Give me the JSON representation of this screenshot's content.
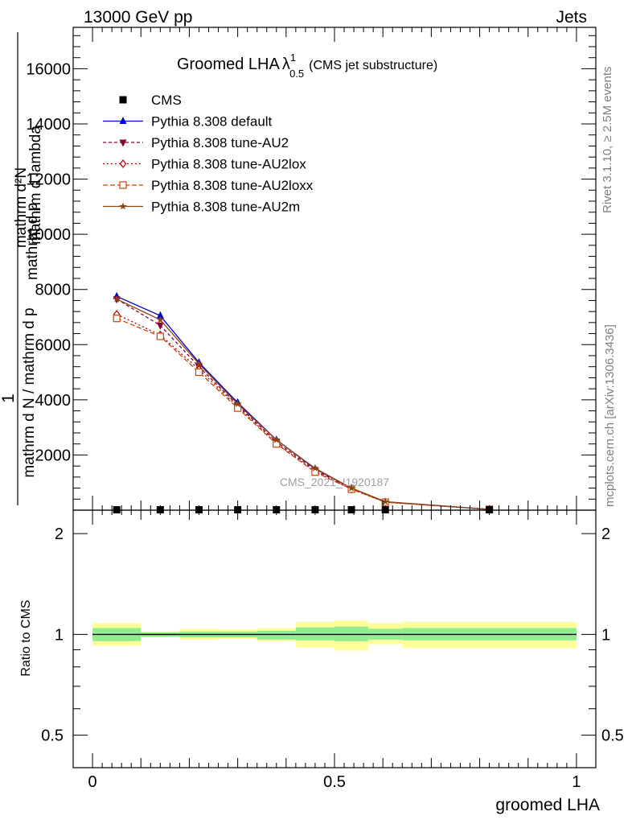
{
  "header": {
    "left": "13000 GeV pp",
    "right": "Jets",
    "side_top": "Rivet 3.1.10, ≥ 2.5M events",
    "side_bottom": "mcplots.cern.ch [arXiv:1306.3436]"
  },
  "chart_data": [
    {
      "type": "line",
      "title": "Groomed LHA",
      "title_symbol": "λ",
      "title_sup": "1",
      "title_sub": "0.5",
      "subtitle": "(CMS jet substructure)",
      "ylabel_lines": [
        "mathrm d²N",
        "mathrm d p",
        "mathrm d lambda"
      ],
      "ylabel_num": "1",
      "ylabel_den": "mathrm d N / mathrm d p",
      "watermark": "CMS_2021_I1920187",
      "xlim": [
        -0.04,
        1.04
      ],
      "ylim": [
        0,
        17500
      ],
      "y_ticks": [
        2000,
        4000,
        6000,
        8000,
        10000,
        12000,
        14000,
        16000
      ],
      "y_tick_labels": [
        "2000",
        "4000",
        "6000",
        "8000",
        "10000",
        "12000",
        "14000",
        "16000"
      ],
      "legend_position": "top-left",
      "cms": {
        "name": "CMS",
        "x": [
          0.05,
          0.14,
          0.22,
          0.3,
          0.38,
          0.46,
          0.535,
          0.605,
          0.82
        ],
        "values": [
          0,
          0,
          0,
          0,
          0,
          0,
          0,
          0,
          0
        ]
      },
      "series": [
        {
          "name": "Pythia 8.308 default",
          "color": "#0000cc",
          "marker": "triangle-up",
          "dash": "",
          "x": [
            0.05,
            0.14,
            0.22,
            0.3,
            0.38,
            0.46,
            0.535,
            0.605,
            0.82
          ],
          "values": [
            7750,
            7050,
            5350,
            3900,
            2550,
            1500,
            800,
            300,
            30
          ]
        },
        {
          "name": "Pythia 8.308 tune-AU2",
          "color": "#8b0033",
          "marker": "triangle-down",
          "dash": "4,3",
          "x": [
            0.05,
            0.14,
            0.22,
            0.3,
            0.38,
            0.46,
            0.535,
            0.605,
            0.82
          ],
          "values": [
            7650,
            6700,
            5200,
            3800,
            2480,
            1450,
            780,
            300,
            30
          ]
        },
        {
          "name": "Pythia 8.308 tune-AU2lox",
          "color": "#b00000",
          "marker": "diamond-open",
          "dash": "2,3",
          "x": [
            0.05,
            0.14,
            0.22,
            0.3,
            0.38,
            0.46,
            0.535,
            0.605,
            0.82
          ],
          "values": [
            7100,
            6350,
            5100,
            3750,
            2420,
            1400,
            760,
            290,
            30
          ]
        },
        {
          "name": "Pythia 8.308 tune-AU2loxx",
          "color": "#cc4400",
          "marker": "square-open",
          "dash": "6,3",
          "x": [
            0.05,
            0.14,
            0.22,
            0.3,
            0.38,
            0.46,
            0.535,
            0.605,
            0.82
          ],
          "values": [
            6950,
            6300,
            5000,
            3700,
            2400,
            1380,
            760,
            290,
            30
          ]
        },
        {
          "name": "Pythia 8.308 tune-AU2m",
          "color": "#8b4513",
          "marker": "star",
          "dash": "",
          "x": [
            0.05,
            0.14,
            0.22,
            0.3,
            0.38,
            0.46,
            0.535,
            0.605,
            0.82
          ],
          "values": [
            7650,
            6900,
            5300,
            3850,
            2550,
            1520,
            800,
            310,
            30
          ]
        }
      ]
    },
    {
      "type": "line",
      "title": "",
      "xlabel": "groomed LHA",
      "ylabel": "Ratio to CMS",
      "xlim": [
        -0.04,
        1.04
      ],
      "ylim": [
        0.4,
        2.35
      ],
      "y_scale": "log",
      "y_major_ticks": [
        0.5,
        1,
        2
      ],
      "y_major_labels": [
        "0.5",
        "1",
        "2"
      ],
      "x_major_ticks": [
        0,
        0.5,
        1
      ],
      "x_major_labels": [
        "0",
        "0.5",
        "1"
      ],
      "ratio_line": 1,
      "bands": [
        {
          "x0": 0.0,
          "x1": 0.1,
          "green": [
            0.955,
            1.045
          ],
          "yellow": [
            0.925,
            1.08
          ]
        },
        {
          "x0": 0.1,
          "x1": 0.18,
          "green": [
            0.985,
            1.015
          ],
          "yellow": [
            0.98,
            1.02
          ]
        },
        {
          "x0": 0.18,
          "x1": 0.26,
          "green": [
            0.98,
            1.02
          ],
          "yellow": [
            0.965,
            1.04
          ]
        },
        {
          "x0": 0.26,
          "x1": 0.34,
          "green": [
            0.98,
            1.02
          ],
          "yellow": [
            0.97,
            1.035
          ]
        },
        {
          "x0": 0.34,
          "x1": 0.42,
          "green": [
            0.965,
            1.025
          ],
          "yellow": [
            0.955,
            1.045
          ]
        },
        {
          "x0": 0.42,
          "x1": 0.5,
          "green": [
            0.96,
            1.05
          ],
          "yellow": [
            0.915,
            1.09
          ]
        },
        {
          "x0": 0.5,
          "x1": 0.57,
          "green": [
            0.955,
            1.055
          ],
          "yellow": [
            0.895,
            1.1
          ]
        },
        {
          "x0": 0.57,
          "x1": 0.64,
          "green": [
            0.965,
            1.04
          ],
          "yellow": [
            0.935,
            1.08
          ]
        },
        {
          "x0": 0.64,
          "x1": 1.0,
          "green": [
            0.96,
            1.045
          ],
          "yellow": [
            0.91,
            1.09
          ]
        }
      ]
    }
  ]
}
